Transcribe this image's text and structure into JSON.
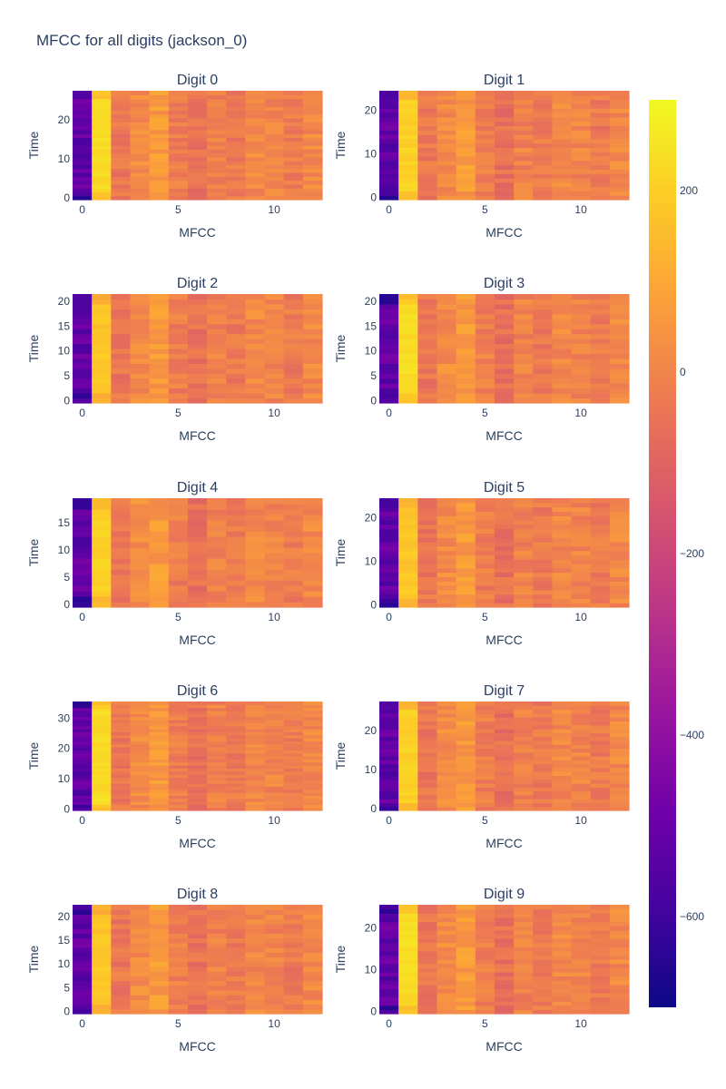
{
  "title": "MFCC for all digits (jackson_0)",
  "colorscale": {
    "name": "plasma",
    "stops": [
      "#0d0887",
      "#46039f",
      "#7201a8",
      "#9c179e",
      "#bd3786",
      "#d8576b",
      "#ed7953",
      "#fb9f3a",
      "#fdca26",
      "#f0f921"
    ],
    "range": [
      -700,
      300
    ],
    "ticks": [
      {
        "value": 200,
        "label": "200"
      },
      {
        "value": 0,
        "label": "0"
      },
      {
        "value": -200,
        "label": "−200"
      },
      {
        "value": -400,
        "label": "−400"
      },
      {
        "value": -600,
        "label": "−600"
      }
    ]
  },
  "chart_data": {
    "type": "heatmap",
    "xlabel": "MFCC",
    "ylabel": "Time",
    "x_range": [
      -0.5,
      12.5
    ],
    "x_ticks": [
      0,
      5,
      10
    ],
    "colorbar_range": [
      -700,
      300
    ],
    "base_profile": [
      -520,
      230,
      -40,
      20,
      60,
      -20,
      -60,
      -10,
      -30,
      10,
      0,
      -30,
      10
    ],
    "panels": [
      {
        "title": "Digit 0",
        "frames": 28,
        "y_ticks": [
          0,
          10,
          20
        ]
      },
      {
        "title": "Digit 1",
        "frames": 25,
        "y_ticks": [
          0,
          10,
          20
        ]
      },
      {
        "title": "Digit 2",
        "frames": 22,
        "y_ticks": [
          0,
          5,
          10,
          15,
          20
        ]
      },
      {
        "title": "Digit 3",
        "frames": 22,
        "y_ticks": [
          0,
          5,
          10,
          15,
          20
        ]
      },
      {
        "title": "Digit 4",
        "frames": 20,
        "y_ticks": [
          0,
          5,
          10,
          15
        ]
      },
      {
        "title": "Digit 5",
        "frames": 25,
        "y_ticks": [
          0,
          10,
          20
        ]
      },
      {
        "title": "Digit 6",
        "frames": 36,
        "y_ticks": [
          0,
          10,
          20,
          30
        ]
      },
      {
        "title": "Digit 7",
        "frames": 28,
        "y_ticks": [
          0,
          10,
          20
        ]
      },
      {
        "title": "Digit 8",
        "frames": 23,
        "y_ticks": [
          0,
          5,
          10,
          15,
          20
        ]
      },
      {
        "title": "Digit 9",
        "frames": 26,
        "y_ticks": [
          0,
          10,
          20
        ]
      }
    ]
  }
}
